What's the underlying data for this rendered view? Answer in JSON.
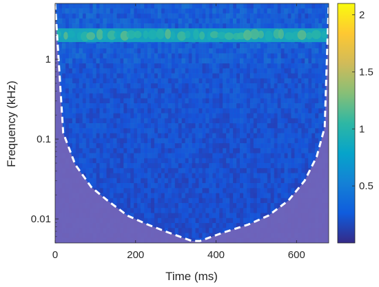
{
  "chart_data": {
    "type": "heatmap",
    "title": "",
    "xlabel": "Time (ms)",
    "ylabel": "Frequency (kHz)",
    "xlim": [
      0,
      680
    ],
    "ylim": [
      0.005,
      5.0
    ],
    "yscale": "log",
    "x_ticks": [
      0,
      200,
      400,
      600
    ],
    "x_tick_labels": [
      "0",
      "200",
      "400",
      "600"
    ],
    "y_ticks": [
      0.01,
      0.1,
      1
    ],
    "y_tick_labels": [
      "0.01",
      "0.1",
      "1"
    ],
    "colorbar": {
      "colormap": "parula",
      "range": [
        0.0,
        2.1
      ],
      "ticks": [
        0.5,
        1,
        1.5,
        2
      ],
      "tick_labels": [
        "0.5",
        "1",
        "1.5",
        "2"
      ],
      "colors": [
        "#352a87",
        "#0f5cdd",
        "#1481d6",
        "#06a4ca",
        "#2eb7a4",
        "#87bf77",
        "#d1bb59",
        "#fec832",
        "#f9fb0e"
      ]
    },
    "heatmap": {
      "background_level": 0.3,
      "band_frequency_khz": 2.0,
      "band_level": 0.9,
      "band_peak_level": 1.2
    },
    "cone_of_influence": {
      "style": "dashed",
      "color": "#ffffff",
      "outside_shade": "#7465b8",
      "time_ms": [
        0,
        20,
        50,
        90,
        130,
        180,
        230,
        280,
        340,
        360,
        420,
        480,
        530,
        580,
        620,
        650,
        670,
        680
      ],
      "freq_khz": [
        5.0,
        0.12,
        0.048,
        0.025,
        0.017,
        0.011,
        0.0085,
        0.0068,
        0.0053,
        0.0053,
        0.0068,
        0.0085,
        0.011,
        0.017,
        0.03,
        0.06,
        0.14,
        5.0
      ]
    }
  }
}
